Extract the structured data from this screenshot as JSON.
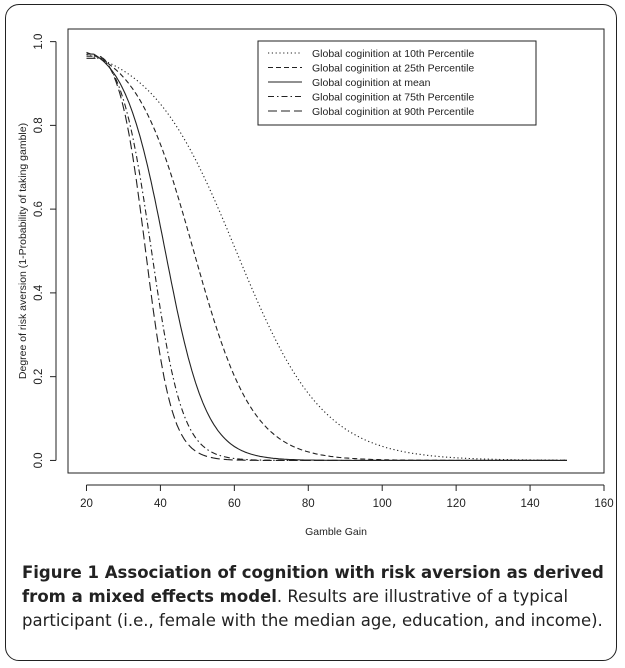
{
  "chart_data": {
    "type": "line",
    "xlabel": "Gamble Gain",
    "ylabel": "Degree of risk aversion (1-Probability of taking gamble)",
    "xlim": [
      15,
      160
    ],
    "ylim": [
      -0.03,
      1.03
    ],
    "x_ticks": [
      20,
      40,
      60,
      80,
      100,
      120,
      140,
      160
    ],
    "x_tick_labels": [
      "20",
      "40",
      "60",
      "80",
      "100",
      "120",
      "140",
      "160"
    ],
    "y_ticks": [
      0.0,
      0.2,
      0.4,
      0.6,
      0.8,
      1.0
    ],
    "y_tick_labels": [
      "0.0",
      "0.2",
      "0.4",
      "0.6",
      "0.8",
      "1.0"
    ],
    "x_domain": [
      20,
      150
    ],
    "grid": false,
    "legend_position": "top-right",
    "series": [
      {
        "name": "Global coginition at 10th Percentile",
        "line_style": "dotted",
        "x50": 60.5,
        "slope": 0.085,
        "start": 0.98
      },
      {
        "name": "Global coginition at 25th Percentile",
        "line_style": "dashed",
        "x50": 49,
        "slope": 0.125,
        "start": 0.975
      },
      {
        "name": "Global coginition at mean",
        "line_style": "solid",
        "x50": 41.3,
        "slope": 0.18,
        "start": 0.97
      },
      {
        "name": "Global coginition at 75th Percentile",
        "line_style": "dashdot",
        "x50": 37.6,
        "slope": 0.24,
        "start": 0.965
      },
      {
        "name": "Global coginition at 90th Percentile",
        "line_style": "longdash",
        "x50": 36.0,
        "slope": 0.28,
        "start": 0.96
      }
    ]
  },
  "caption": {
    "figure_label": "Figure 1",
    "title": " Association of cognition with risk aversion as derived from a mixed effects model",
    "text": ". Results are illustrative of a typical participant (i.e., female with the median age, education, and income)."
  },
  "colors": {
    "line": "#222222",
    "frame": "#222222",
    "text": "#222222"
  }
}
